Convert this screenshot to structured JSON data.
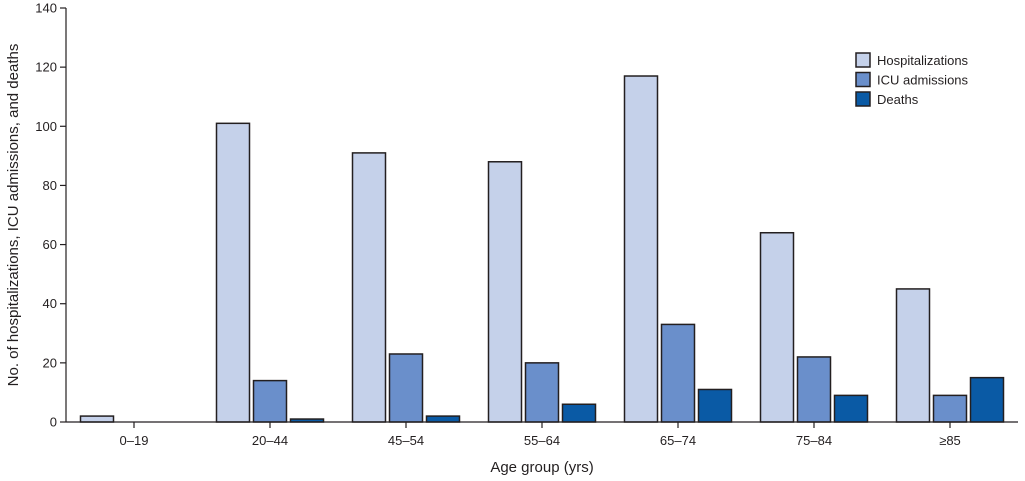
{
  "chart_data": {
    "type": "bar",
    "title": "",
    "xlabel": "Age group (yrs)",
    "ylabel": "No. of hospitalizations, ICU admissions, and deaths",
    "ylim": [
      0,
      140
    ],
    "yticks": [
      0,
      20,
      40,
      60,
      80,
      100,
      120,
      140
    ],
    "grid": false,
    "legend_position": "top-right",
    "categories": [
      "0–19",
      "20–44",
      "45–54",
      "55–64",
      "65–74",
      "75–84",
      "≥85"
    ],
    "series": [
      {
        "name": "Hospitalizations",
        "color": "#c5d1ea",
        "values": [
          2,
          101,
          91,
          88,
          117,
          64,
          45
        ]
      },
      {
        "name": "ICU admissions",
        "color": "#6a8fcb",
        "values": [
          0,
          14,
          23,
          20,
          33,
          22,
          9
        ]
      },
      {
        "name": "Deaths",
        "color": "#0a5aa5",
        "values": [
          0,
          1,
          2,
          6,
          11,
          9,
          15
        ]
      }
    ]
  }
}
